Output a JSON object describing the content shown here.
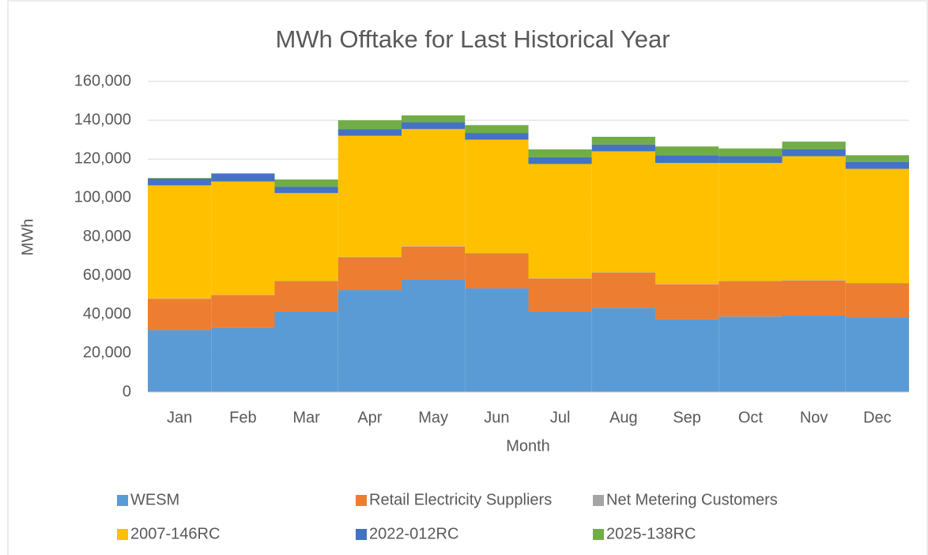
{
  "chart_data": {
    "type": "stacked_bar",
    "title": "MWh Offtake for Last Historical Year",
    "x_label": "Month",
    "y_label": "MWh",
    "categories": [
      "Jan",
      "Feb",
      "Mar",
      "Apr",
      "May",
      "Jun",
      "Jul",
      "Aug",
      "Sep",
      "Oct",
      "Nov",
      "Dec"
    ],
    "series": [
      {
        "name": "WESM",
        "color": "#5b9bd5",
        "values": [
          32000,
          33000,
          41500,
          52500,
          58000,
          53500,
          41500,
          43500,
          37500,
          39000,
          39500,
          38500
        ]
      },
      {
        "name": "Retail Electricity Suppliers",
        "color": "#ed7d31",
        "values": [
          16000,
          17000,
          15500,
          17000,
          17000,
          18000,
          17000,
          18000,
          18000,
          18000,
          18000,
          17500
        ]
      },
      {
        "name": "Net Metering Customers",
        "color": "#a5a5a5",
        "values": [
          200,
          200,
          200,
          200,
          200,
          200,
          200,
          200,
          200,
          200,
          200,
          200
        ]
      },
      {
        "name": "2007-146RC",
        "color": "#ffc000",
        "values": [
          58300,
          58300,
          45300,
          62300,
          60300,
          58300,
          58800,
          62300,
          62300,
          60800,
          63800,
          58800
        ]
      },
      {
        "name": "2022-012RC",
        "color": "#4472c4",
        "values": [
          3500,
          4000,
          3300,
          3500,
          3500,
          3500,
          3500,
          3500,
          4000,
          3500,
          3500,
          3500
        ]
      },
      {
        "name": "2025-138RC",
        "color": "#70ad47",
        "values": [
          300,
          200,
          3700,
          4500,
          3500,
          4000,
          4000,
          4000,
          4500,
          4000,
          4000,
          3500
        ]
      }
    ],
    "ylim": [
      0,
      160000
    ],
    "yticks": [
      0,
      {
        "value": 20000,
        "label": "20,000"
      },
      {
        "value": 40000,
        "label": "40,000"
      },
      {
        "value": 60000,
        "label": "60,000"
      },
      {
        "value": 80000,
        "label": "80,000"
      },
      {
        "value": 100000,
        "label": "100,000"
      },
      {
        "value": 120000,
        "label": "120,000"
      },
      {
        "value": 140000,
        "label": "140,000"
      },
      {
        "value": 160000,
        "label": "160,000"
      }
    ],
    "grid": true,
    "legend": "bottom"
  }
}
